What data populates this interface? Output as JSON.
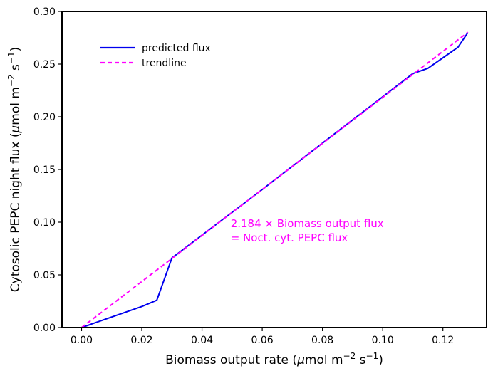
{
  "chart_data": {
    "type": "line",
    "xlabel_main": "Biomass output rate (",
    "xlabel_mu": "μ",
    "xlabel_rest": "mol m",
    "xlabel_sup": "−2",
    "xlabel_tail": " s",
    "xlabel_sup2": "−1",
    "xlabel_close": ")",
    "ylabel_main": "Cytosolic PEPC night flux (",
    "ylabel_mu": "μ",
    "ylabel_rest": "mol m",
    "ylabel_sup": "−2",
    "ylabel_tail": " s",
    "ylabel_sup2": "−1",
    "ylabel_close": ")",
    "xlim": [
      -0.0065,
      0.1345
    ],
    "ylim": [
      0,
      0.3
    ],
    "xticks": [
      0.0,
      0.02,
      0.04,
      0.06,
      0.08,
      0.1,
      0.12
    ],
    "xtick_labels": [
      "0.00",
      "0.02",
      "0.04",
      "0.06",
      "0.08",
      "0.10",
      "0.12"
    ],
    "yticks": [
      0.0,
      0.05,
      0.1,
      0.15,
      0.2,
      0.25,
      0.3
    ],
    "ytick_labels": [
      "0.00",
      "0.05",
      "0.10",
      "0.15",
      "0.20",
      "0.25",
      "0.30"
    ],
    "series": [
      {
        "name": "predicted flux",
        "color": "#0000ee",
        "style": "solid",
        "x": [
          0.0,
          0.01,
          0.02,
          0.025,
          0.03,
          0.06,
          0.09,
          0.11,
          0.115,
          0.12,
          0.125,
          0.1283
        ],
        "y": [
          0.0,
          0.01,
          0.02,
          0.026,
          0.066,
          0.131,
          0.197,
          0.241,
          0.246,
          0.256,
          0.266,
          0.28
        ]
      },
      {
        "name": "trendline",
        "color": "#ff00ff",
        "style": "dashed",
        "x": [
          0.0,
          0.1283
        ],
        "y": [
          0.0,
          0.2802
        ]
      }
    ],
    "legend_position": "top-left",
    "annotation_line1": "2.184 × Biomass output flux",
    "annotation_line2": "= Noct. cyt. PEPC flux",
    "annotation_color": "#ff00ff",
    "annotation_x": 0.0495,
    "annotation_y": 0.0952
  }
}
